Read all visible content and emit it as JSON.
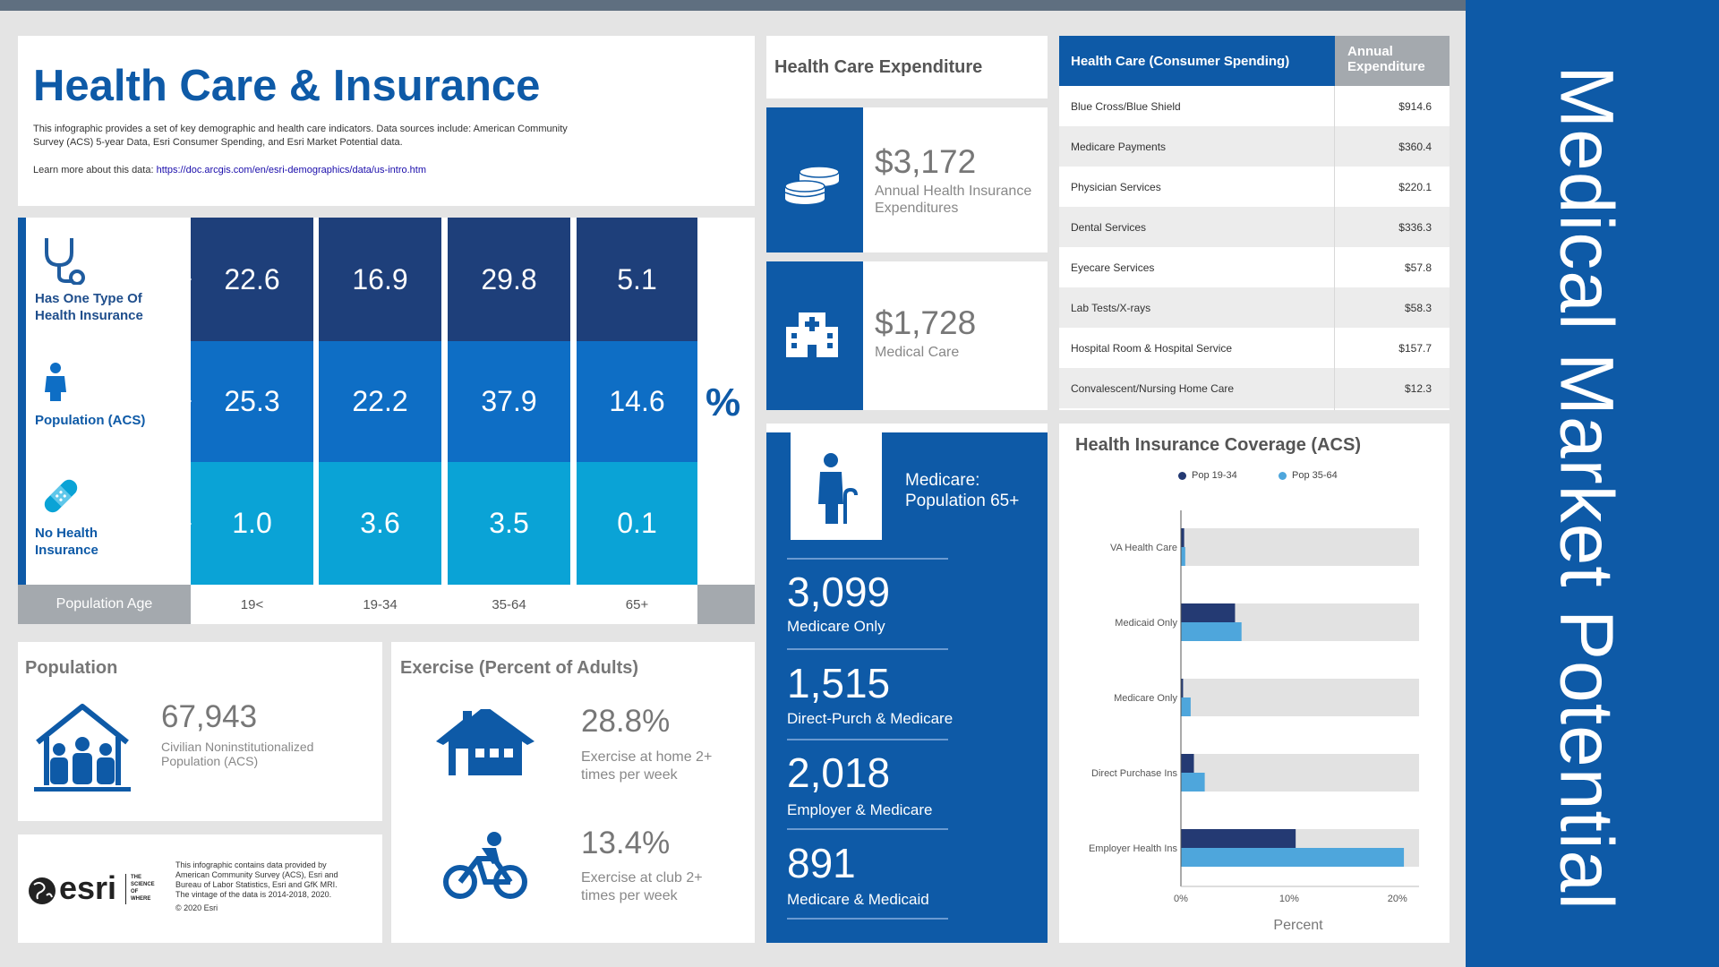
{
  "sidebar": {
    "title": "Medical Market Potential"
  },
  "header": {
    "title": "Health Care & Insurance",
    "description": "This infographic provides a set of key demographic and health care indicators. Data sources include: American Community Survey (ACS) 5-year Data, Esri Consumer Spending, and Esri Market Potential data.",
    "learn_more_label": "Learn more about this data:",
    "learn_more_link": "https://doc.arcgis.com/en/esri-demographics/data/us-intro.htm"
  },
  "insurance_table": {
    "rows": [
      {
        "label_1": "Has One Type Of",
        "label_2": "Health Insurance",
        "values": [
          "22.6",
          "16.9",
          "29.8",
          "5.1"
        ]
      },
      {
        "label_1": "Population (ACS)",
        "label_2": "",
        "values": [
          "25.3",
          "22.2",
          "37.9",
          "14.6"
        ]
      },
      {
        "label_1": "No Health",
        "label_2": "Insurance",
        "values": [
          "1.0",
          "3.6",
          "3.5",
          "0.1"
        ]
      }
    ],
    "percent_sign": "%",
    "age_label": "Population Age",
    "ages": [
      "19<",
      "19-34",
      "35-64",
      "65+"
    ],
    "colors": {
      "row1": "#1e3f7a",
      "row2": "#0e6ec5",
      "row3": "#0aa3d6"
    }
  },
  "expenditure": {
    "title": "Health Care Expenditure",
    "items": [
      {
        "value": "$3,172",
        "label_1": "Annual Health Insurance",
        "label_2": "Expenditures"
      },
      {
        "value": "$1,728",
        "label_1": "Medical Care",
        "label_2": ""
      }
    ]
  },
  "consumer_spending": {
    "header_left": "Health Care (Consumer Spending)",
    "header_right_1": "Annual",
    "header_right_2": "Expenditure",
    "rows": [
      {
        "label": "Blue Cross/Blue Shield",
        "value": "$914.6"
      },
      {
        "label": "Medicare Payments",
        "value": "$360.4"
      },
      {
        "label": "Physician Services",
        "value": "$220.1"
      },
      {
        "label": "Dental Services",
        "value": "$336.3"
      },
      {
        "label": "Eyecare Services",
        "value": "$57.8"
      },
      {
        "label": "Lab Tests/X-rays",
        "value": "$58.3"
      },
      {
        "label": "Hospital Room & Hospital Service",
        "value": "$157.7"
      },
      {
        "label": "Convalescent/Nursing Home Care",
        "value": "$12.3"
      }
    ]
  },
  "medicare": {
    "title_1": "Medicare:",
    "title_2": "Population 65+",
    "stats": [
      {
        "value": "3,099",
        "label": "Medicare Only"
      },
      {
        "value": "1,515",
        "label": "Direct-Purch & Medicare"
      },
      {
        "value": "2,018",
        "label": "Employer & Medicare"
      },
      {
        "value": "891",
        "label": "Medicare & Medicaid"
      }
    ]
  },
  "population": {
    "title": "Population",
    "value": "67,943",
    "label_1": "Civilian Noninstitutionalized",
    "label_2": "Population (ACS)"
  },
  "exercise": {
    "title": "Exercise (Percent of Adults)",
    "items": [
      {
        "value": "28.8%",
        "label_1": "Exercise at home 2+",
        "label_2": "times per week"
      },
      {
        "value": "13.4%",
        "label_1": "Exercise at club 2+",
        "label_2": "times per week"
      }
    ]
  },
  "footer": {
    "logo_text": "esri",
    "tagline_1": "THE",
    "tagline_2": "SCIENCE",
    "tagline_3": "OF",
    "tagline_4": "WHERE",
    "note_1": "This infographic contains data provided by",
    "note_2": "American Community Survey (ACS), Esri and",
    "note_3": "Bureau of Labor Statistics, Esri and GfK MRI.",
    "note_4": "The vintage of the data is 2014-2018, 2020.",
    "copyright": "© 2020 Esri"
  },
  "chart_data": {
    "type": "bar",
    "orientation": "horizontal",
    "title": "Health Insurance Coverage (ACS)",
    "categories": [
      "VA Health Care",
      "Medicaid Only",
      "Medicare Only",
      "Direct Purchase Ins",
      "Employer Health Ins"
    ],
    "series": [
      {
        "name": "Pop 19-34",
        "color": "#243a73",
        "values": [
          0.3,
          5.0,
          0.2,
          1.2,
          10.6
        ]
      },
      {
        "name": "Pop 35-64",
        "color": "#4ea6dc",
        "values": [
          0.4,
          5.6,
          0.9,
          2.2,
          20.6
        ]
      }
    ],
    "xlabel": "Percent",
    "xlim": [
      0,
      22
    ],
    "ticks": [
      0,
      10,
      20
    ],
    "tick_labels": [
      "0%",
      "10%",
      "20%"
    ],
    "legend": "top"
  }
}
